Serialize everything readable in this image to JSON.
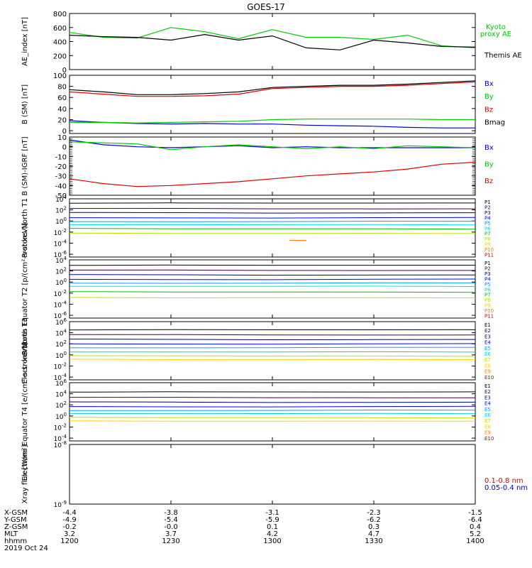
{
  "title": "GOES-17",
  "colors": {
    "black": "#000000",
    "red": "#dd0000",
    "green": "#00cc00",
    "blue": "#0000dd",
    "p_colors": [
      "#000000",
      "#400040",
      "#000080",
      "#0000ff",
      "#00a0ff",
      "#00e0e0",
      "#00c000",
      "#c0e000",
      "#ffd000",
      "#ff8000",
      "#cc0000"
    ],
    "e_colors": [
      "#000000",
      "#400040",
      "#000080",
      "#0000ff",
      "#00a0ff",
      "#00d0d0",
      "#c0e000",
      "#ffd000",
      "#ff8000",
      "#cc0000"
    ]
  },
  "x_axis": {
    "positions": [
      "1200",
      "1230",
      "1300",
      "1330",
      "1400"
    ],
    "rows": [
      {
        "label": "X-GSM",
        "values": [
          "-4.4",
          "-3.8",
          "-3.1",
          "-2.3",
          "-1.5"
        ]
      },
      {
        "label": "Y-GSM",
        "values": [
          "-4.9",
          "-5.4",
          "-5.9",
          "-6.2",
          "-6.4"
        ]
      },
      {
        "label": "Z-GSM",
        "values": [
          "-0.2",
          "-0.0",
          "0.1",
          "0.3",
          "0.4"
        ]
      },
      {
        "label": "MLT",
        "values": [
          "3.2",
          "3.7",
          "4.2",
          "4.7",
          "5.2"
        ]
      },
      {
        "label": "hhmm",
        "values": [
          "1200",
          "1230",
          "1300",
          "1330",
          "1400"
        ]
      }
    ],
    "date": "2019 Oct 24"
  },
  "chart_data": [
    {
      "type": "line",
      "ylabel": "AE_index [nT]",
      "yticks": [
        "0",
        "200",
        "400",
        "600",
        "800"
      ],
      "ylim": [
        0,
        800
      ],
      "x": [
        "1200",
        "1210",
        "1220",
        "1230",
        "1240",
        "1250",
        "1300",
        "1310",
        "1320",
        "1330",
        "1340",
        "1350",
        "1400"
      ],
      "series": [
        {
          "name": "Kyoto proxy AE",
          "color": "green",
          "values": [
            530,
            460,
            450,
            600,
            540,
            440,
            570,
            460,
            460,
            430,
            490,
            340,
            310
          ]
        },
        {
          "name": "Themis AE",
          "color": "black",
          "values": [
            490,
            470,
            460,
            420,
            500,
            420,
            480,
            310,
            280,
            420,
            380,
            330,
            320
          ]
        }
      ],
      "legend": [
        "Kyoto",
        "proxy AE",
        "Themis AE"
      ]
    },
    {
      "type": "line",
      "ylabel": "B (SM) [nT]",
      "yticks": [
        "0",
        "20",
        "40",
        "60",
        "80",
        "100"
      ],
      "ylim": [
        -5,
        100
      ],
      "x": [
        "1200",
        "1210",
        "1220",
        "1230",
        "1240",
        "1250",
        "1300",
        "1310",
        "1320",
        "1330",
        "1340",
        "1350",
        "1400"
      ],
      "series": [
        {
          "name": "Bx",
          "color": "blue",
          "values": [
            18,
            15,
            13,
            12,
            13,
            12,
            12,
            10,
            9,
            8,
            6,
            5,
            5
          ]
        },
        {
          "name": "By",
          "color": "green",
          "values": [
            15,
            15,
            14,
            15,
            16,
            17,
            20,
            21,
            21,
            21,
            21,
            20,
            20
          ]
        },
        {
          "name": "Bz",
          "color": "red",
          "values": [
            70,
            66,
            62,
            62,
            63,
            66,
            76,
            78,
            80,
            80,
            82,
            85,
            88
          ]
        },
        {
          "name": "Bmag",
          "color": "black",
          "values": [
            74,
            70,
            65,
            65,
            67,
            70,
            78,
            80,
            82,
            82,
            84,
            87,
            90
          ]
        }
      ],
      "legend": [
        "Bx",
        "By",
        "Bz",
        "Bmag"
      ]
    },
    {
      "type": "line",
      "ylabel": "B (SM)-IGRF [nT]",
      "yticks": [
        "-50",
        "-40",
        "-30",
        "-20",
        "-10",
        "0",
        "10"
      ],
      "ylim": [
        -50,
        10
      ],
      "x": [
        "1200",
        "1210",
        "1220",
        "1230",
        "1240",
        "1250",
        "1300",
        "1310",
        "1320",
        "1330",
        "1340",
        "1350",
        "1400"
      ],
      "series": [
        {
          "name": "Bx",
          "color": "blue",
          "values": [
            7,
            2,
            0,
            -1,
            0,
            1,
            -1,
            0,
            -1,
            -1,
            -1,
            -1,
            -1
          ]
        },
        {
          "name": "By",
          "color": "green",
          "values": [
            5,
            4,
            3,
            -3,
            0,
            2,
            0,
            -2,
            0,
            -2,
            1,
            0,
            -1
          ]
        },
        {
          "name": "Bz",
          "color": "red",
          "values": [
            -33,
            -38,
            -41,
            -40,
            -38,
            -36,
            -33,
            -30,
            -28,
            -26,
            -23,
            -18,
            -16
          ]
        }
      ],
      "legend": [
        "Bx",
        "By",
        "Bz"
      ]
    },
    {
      "type": "line",
      "ylabel": "Protons North T1",
      "yticks": [
        "10^-6",
        "10^-4",
        "10^-2",
        "10^0",
        "10^2",
        "10^4"
      ],
      "ylim_log10": [
        -6.5,
        4
      ],
      "x": [
        "1200",
        "1230",
        "1300",
        "1330",
        "1400"
      ],
      "series_log10": [
        3.2,
        2.2,
        1.5,
        0.6,
        -0.1,
        -0.7,
        -1.4,
        -2.2
      ],
      "fragment": {
        "x": [
          "1305",
          "1310"
        ],
        "log10": -3.5
      },
      "legend": [
        "P1",
        "P2",
        "P3",
        "P4",
        "P5",
        "P6",
        "P7",
        "P8",
        "P9",
        "P10",
        "P11"
      ]
    },
    {
      "type": "line",
      "ylabel": "Protons Equator T2 [p/(cm²-s-sr-keV)]",
      "yticks": [
        "10^-6",
        "10^-4",
        "10^-2",
        "10^0",
        "10^2",
        "10^4"
      ],
      "ylim_log10": [
        -6.5,
        4
      ],
      "x": [
        "1200",
        "1230",
        "1300",
        "1330",
        "1400"
      ],
      "series_log10": [
        3.0,
        2.1,
        1.3,
        0.5,
        -0.2,
        -0.8,
        -1.8,
        -2.8
      ],
      "legend": [
        "P1",
        "P2",
        "P3",
        "P4",
        "P5",
        "P6",
        "P7",
        "P8",
        "P9",
        "P10",
        "P11"
      ]
    },
    {
      "type": "line",
      "ylabel": "Electrons North T3",
      "yticks": [
        "10^-4",
        "10^-2",
        "10^0",
        "10^2",
        "10^4",
        "10^6"
      ],
      "ylim_log10": [
        -4.5,
        6
      ],
      "x": [
        "1200",
        "1230",
        "1300",
        "1330",
        "1400"
      ],
      "series_log10": [
        4.5,
        3.6,
        2.8,
        2.0,
        1.3,
        0.5,
        -0.2,
        -0.8
      ],
      "legend": [
        "E1",
        "E2",
        "E3",
        "E4",
        "E5",
        "E6",
        "E7",
        "E8",
        "E9",
        "E10"
      ]
    },
    {
      "type": "line",
      "ylabel": "Electrons Equator T4 [e/(cm²-s-sr-keV)]",
      "yticks": [
        "10^-4",
        "10^-2",
        "10^0",
        "10^2",
        "10^4",
        "10^6"
      ],
      "ylim_log10": [
        -4.5,
        6
      ],
      "x": [
        "1200",
        "1230",
        "1300",
        "1330",
        "1400"
      ],
      "series_log10": [
        4.3,
        3.3,
        2.5,
        1.7,
        1.0,
        0.4,
        -0.3,
        -0.9
      ],
      "legend": [
        "E1",
        "E2",
        "E3",
        "E4",
        "E5",
        "E6",
        "E7",
        "E8",
        "E9",
        "E10"
      ]
    },
    {
      "type": "line",
      "ylabel": "Xray flux [W/m²]",
      "yticks": [
        "10^-8",
        "10^-9"
      ],
      "ylim_log10": [
        -9,
        -8
      ],
      "series": [
        {
          "name": "0.1-0.8 nm",
          "color": "red"
        },
        {
          "name": "0.05-0.4 nm",
          "color": "blue"
        }
      ],
      "legend": [
        "0.1-0.8 nm",
        "0.05-0.4 nm"
      ]
    }
  ]
}
